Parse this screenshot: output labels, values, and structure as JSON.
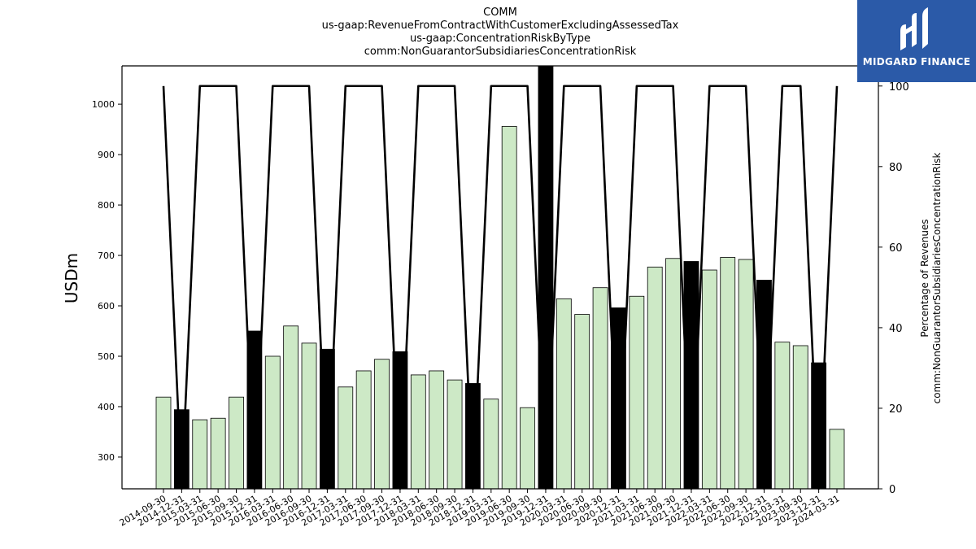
{
  "title_lines": [
    "COMM",
    "us-gaap:RevenueFromContractWithCustomerExcludingAssessedTax",
    "us-gaap:ConcentrationRiskByType",
    "comm:NonGuarantorSubsidiariesConcentrationRisk"
  ],
  "logo": {
    "text": "MIDGARD FINANCE",
    "icon": "midgard-logo-icon",
    "color": "#2b5aa8"
  },
  "chart_data": {
    "type": "bar",
    "categories": [
      "2014-09-30",
      "2014-12-31",
      "2015-03-31",
      "2015-06-30",
      "2015-09-30",
      "2015-12-31",
      "2016-03-31",
      "2016-06-30",
      "2016-09-30",
      "2016-12-31",
      "2017-03-31",
      "2017-06-30",
      "2017-09-30",
      "2017-12-31",
      "2018-03-31",
      "2018-06-30",
      "2018-09-30",
      "2018-12-31",
      "2019-03-31",
      "2019-06-30",
      "2019-09-30",
      "2019-12-31",
      "2020-03-31",
      "2020-06-30",
      "2020-09-30",
      "2020-12-31",
      "2021-03-31",
      "2021-06-30",
      "2021-09-30",
      "2021-12-31",
      "2022-03-31",
      "2022-06-30",
      "2022-09-30",
      "2022-12-31",
      "2023-03-31",
      "2023-09-30",
      "2023-12-31",
      "2024-03-31"
    ],
    "series": [
      {
        "values": [
          419,
          394,
          374,
          377,
          419,
          550,
          500,
          560,
          526,
          514,
          439,
          471,
          494,
          509,
          463,
          471,
          453,
          446,
          415,
          956,
          398,
          1080,
          614,
          583,
          636,
          596,
          619,
          677,
          694,
          688,
          671,
          696,
          692,
          651,
          528,
          521,
          487,
          355
        ],
        "highlight": [
          false,
          true,
          false,
          false,
          false,
          true,
          false,
          false,
          false,
          true,
          false,
          false,
          false,
          true,
          false,
          false,
          false,
          true,
          false,
          false,
          false,
          true,
          false,
          false,
          false,
          true,
          false,
          false,
          false,
          true,
          false,
          false,
          false,
          true,
          false,
          false,
          true,
          false
        ],
        "color": "#cde9c6",
        "highlight_color": "#000000"
      },
      {
        "type": "line",
        "axis": "right",
        "values": [
          100,
          0,
          100,
          100,
          100,
          0,
          100,
          100,
          100,
          0,
          100,
          100,
          100,
          0,
          100,
          100,
          100,
          0,
          100,
          100,
          100,
          0,
          100,
          100,
          100,
          0,
          100,
          100,
          100,
          0,
          100,
          100,
          100,
          0,
          100,
          100,
          0,
          100
        ],
        "color": "#000000"
      }
    ],
    "ylabel": "USDm",
    "ylim": [
      237,
      1076
    ],
    "yticks": [
      300,
      400,
      500,
      600,
      700,
      800,
      900,
      1000
    ],
    "y2label": "Percentage of Revenues\ncomm:NonGuarantorSubsidiariesConcentrationRisk",
    "y2lim": [
      0,
      105
    ],
    "y2ticks": [
      0,
      20,
      40,
      60,
      80,
      100
    ],
    "grid": false
  }
}
